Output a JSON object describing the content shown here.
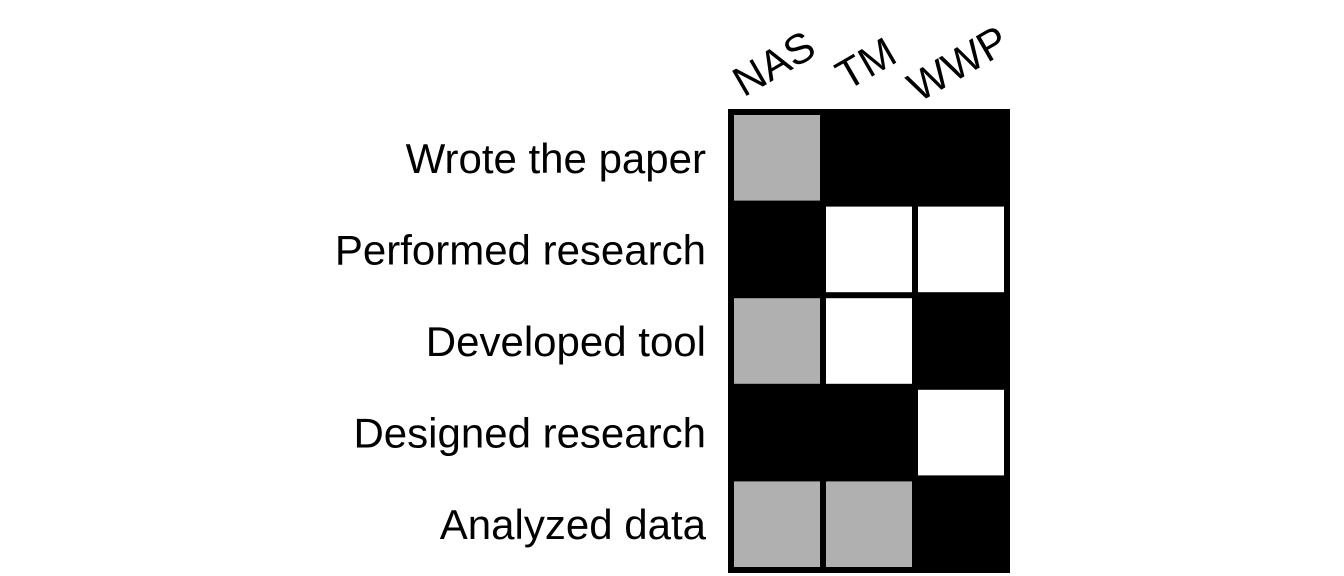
{
  "chart_data": {
    "type": "heatmap",
    "rows": [
      "Wrote the paper",
      "Performed research",
      "Developed tool",
      "Designed research",
      "Analyzed data"
    ],
    "columns": [
      "NAS",
      "TM",
      "WWP"
    ],
    "levels": {
      "none": "#ffffff",
      "partial": "#b0b0b0",
      "full": "#000000"
    },
    "values": [
      [
        "partial",
        "full",
        "full"
      ],
      [
        "full",
        "none",
        "none"
      ],
      [
        "partial",
        "none",
        "full"
      ],
      [
        "full",
        "full",
        "none"
      ],
      [
        "partial",
        "partial",
        "full"
      ]
    ]
  }
}
